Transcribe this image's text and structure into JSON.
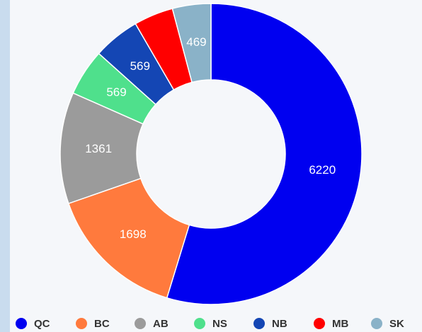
{
  "chart_data": {
    "type": "pie",
    "categories": [
      "QC",
      "BC",
      "AB",
      "NS",
      "NB",
      "MB",
      "SK"
    ],
    "values": [
      6220,
      1698,
      1361,
      569,
      569,
      480,
      469
    ],
    "value_labels": [
      "6220",
      "1698",
      "1361",
      "569",
      "569",
      null,
      "469"
    ],
    "colors": [
      "#0000f0",
      "#ff7a3d",
      "#9b9b9b",
      "#4fe08c",
      "#1446b4",
      "#ff0000",
      "#8ab2c8"
    ],
    "legend": "bottom"
  }
}
